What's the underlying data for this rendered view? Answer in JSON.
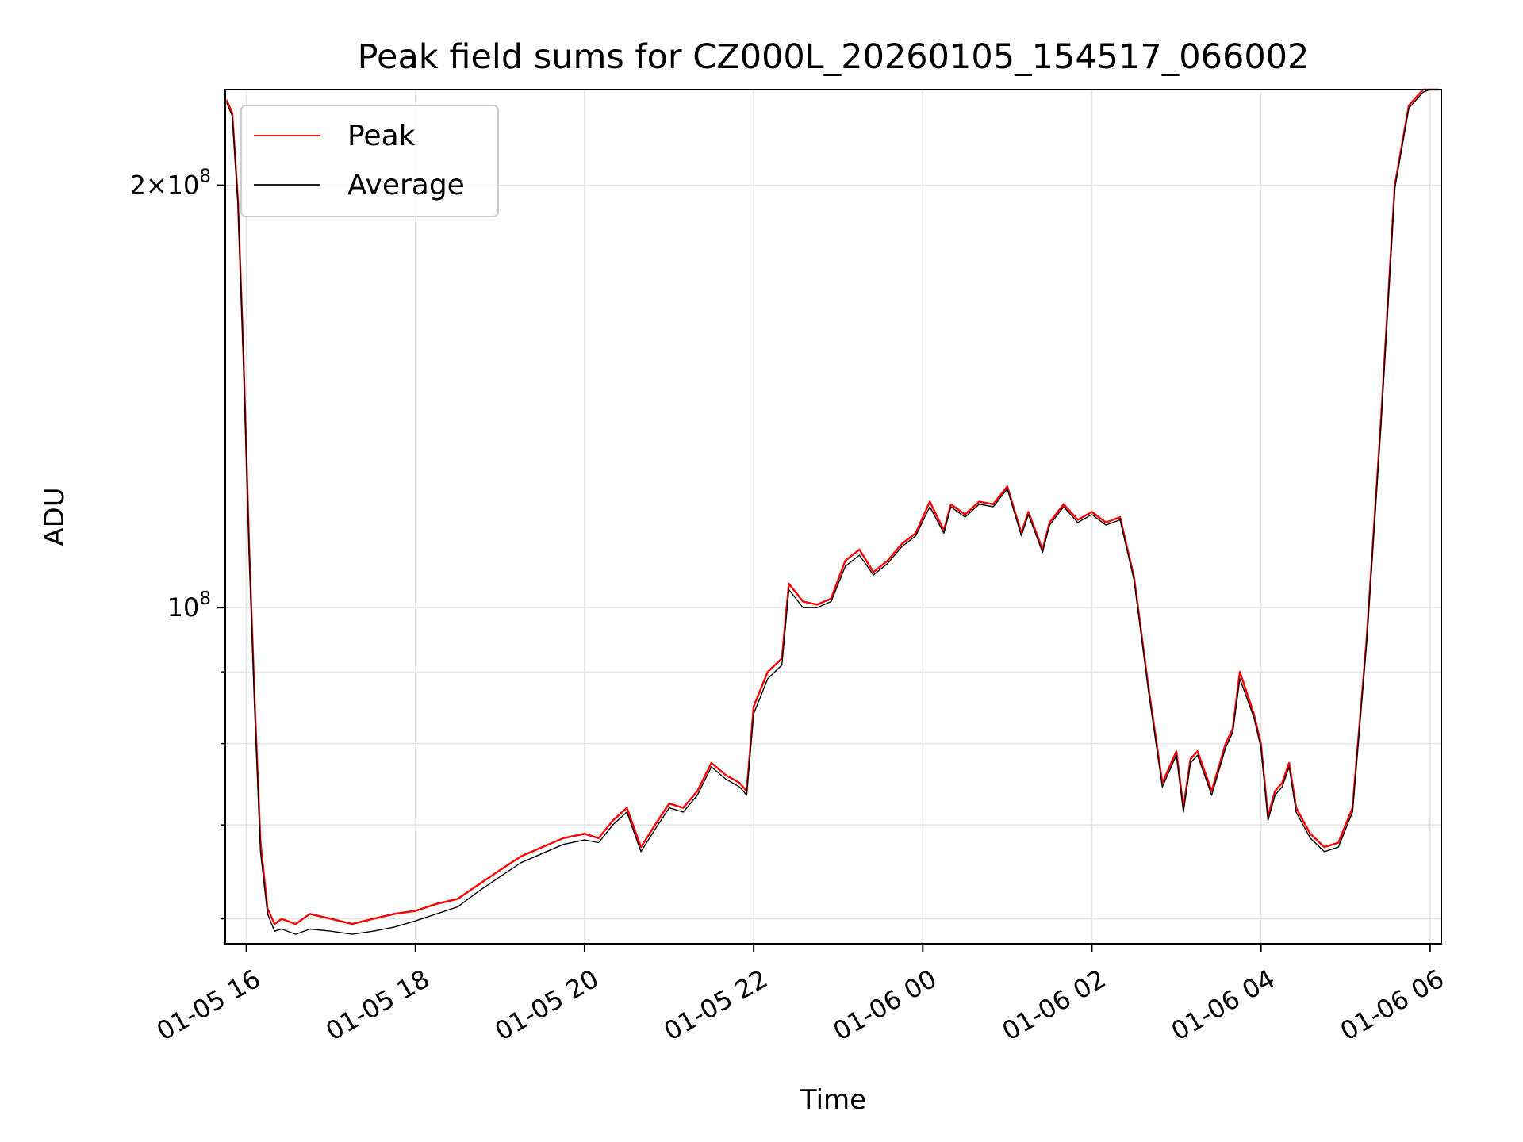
{
  "chart_data": {
    "type": "line",
    "title": "Peak field sums for CZ000L_20260105_154517_066002",
    "xlabel": "Time",
    "ylabel": "ADU",
    "yscale": "log",
    "grid": true,
    "legend_placement": "upper-left",
    "xlim": [
      "2026-01-05 15:45",
      "2026-01-06 06:08"
    ],
    "ylim": [
      57600000,
      234000000
    ],
    "x_ticks": [
      "01-05 16",
      "01-05 18",
      "01-05 20",
      "01-05 22",
      "01-06 00",
      "01-06 02",
      "01-06 04",
      "01-06 06"
    ],
    "x_tick_times": [
      "2026-01-05 16:00",
      "2026-01-05 18:00",
      "2026-01-05 20:00",
      "2026-01-05 22:00",
      "2026-01-06 00:00",
      "2026-01-06 02:00",
      "2026-01-06 04:00",
      "2026-01-06 06:00"
    ],
    "y_ticks_major": [
      {
        "value": 100000000,
        "label": "10^8"
      },
      {
        "value": 200000000,
        "label": "2×10^8"
      }
    ],
    "y_ticks_minor": [
      60000000,
      70000000,
      80000000,
      90000000
    ],
    "series": [
      {
        "name": "Peak",
        "color": "#ff0000",
        "x": [
          "2026-01-05 15:46",
          "2026-01-05 15:50",
          "2026-01-05 15:54",
          "2026-01-05 15:58",
          "2026-01-05 16:02",
          "2026-01-05 16:06",
          "2026-01-05 16:10",
          "2026-01-05 16:15",
          "2026-01-05 16:20",
          "2026-01-05 16:25",
          "2026-01-05 16:35",
          "2026-01-05 16:45",
          "2026-01-05 17:00",
          "2026-01-05 17:15",
          "2026-01-05 17:30",
          "2026-01-05 17:45",
          "2026-01-05 18:00",
          "2026-01-05 18:15",
          "2026-01-05 18:30",
          "2026-01-05 18:45",
          "2026-01-05 19:00",
          "2026-01-05 19:15",
          "2026-01-05 19:30",
          "2026-01-05 19:45",
          "2026-01-05 20:00",
          "2026-01-05 20:10",
          "2026-01-05 20:20",
          "2026-01-05 20:30",
          "2026-01-05 20:40",
          "2026-01-05 20:50",
          "2026-01-05 21:00",
          "2026-01-05 21:10",
          "2026-01-05 21:20",
          "2026-01-05 21:30",
          "2026-01-05 21:40",
          "2026-01-05 21:50",
          "2026-01-05 21:55",
          "2026-01-05 22:00",
          "2026-01-05 22:10",
          "2026-01-05 22:20",
          "2026-01-05 22:25",
          "2026-01-05 22:35",
          "2026-01-05 22:45",
          "2026-01-05 22:55",
          "2026-01-05 23:05",
          "2026-01-05 23:15",
          "2026-01-05 23:25",
          "2026-01-05 23:35",
          "2026-01-05 23:45",
          "2026-01-05 23:55",
          "2026-01-06 00:05",
          "2026-01-06 00:15",
          "2026-01-06 00:20",
          "2026-01-06 00:30",
          "2026-01-06 00:40",
          "2026-01-06 00:50",
          "2026-01-06 01:00",
          "2026-01-06 01:10",
          "2026-01-06 01:15",
          "2026-01-06 01:25",
          "2026-01-06 01:30",
          "2026-01-06 01:40",
          "2026-01-06 01:50",
          "2026-01-06 02:00",
          "2026-01-06 02:10",
          "2026-01-06 02:20",
          "2026-01-06 02:30",
          "2026-01-06 02:40",
          "2026-01-06 02:50",
          "2026-01-06 03:00",
          "2026-01-06 03:05",
          "2026-01-06 03:10",
          "2026-01-06 03:15",
          "2026-01-06 03:25",
          "2026-01-06 03:35",
          "2026-01-06 03:40",
          "2026-01-06 03:45",
          "2026-01-06 03:55",
          "2026-01-06 04:00",
          "2026-01-06 04:05",
          "2026-01-06 04:10",
          "2026-01-06 04:15",
          "2026-01-06 04:20",
          "2026-01-06 04:25",
          "2026-01-06 04:35",
          "2026-01-06 04:45",
          "2026-01-06 04:55",
          "2026-01-06 05:05",
          "2026-01-06 05:15",
          "2026-01-06 05:25",
          "2026-01-06 05:35",
          "2026-01-06 05:45",
          "2026-01-06 05:55",
          "2026-01-06 06:00",
          "2026-01-06 06:06"
        ],
        "values": [
          230000000,
          225000000,
          195000000,
          150000000,
          110000000,
          85000000,
          68000000,
          61000000,
          59500000,
          60000000,
          59500000,
          60500000,
          60000000,
          59500000,
          60000000,
          60500000,
          60800000,
          61500000,
          62000000,
          63500000,
          65000000,
          66500000,
          67500000,
          68500000,
          69000000,
          68500000,
          70500000,
          72000000,
          67500000,
          70000000,
          72500000,
          72000000,
          74000000,
          77500000,
          76000000,
          75000000,
          74000000,
          85000000,
          90000000,
          92000000,
          104000000,
          101000000,
          100500000,
          101500000,
          108000000,
          110000000,
          106000000,
          108000000,
          111000000,
          113000000,
          119000000,
          113500000,
          118500000,
          116500000,
          119000000,
          118500000,
          122000000,
          113000000,
          117000000,
          110000000,
          115000000,
          118500000,
          115500000,
          117000000,
          115000000,
          116000000,
          105000000,
          88000000,
          75000000,
          79000000,
          72000000,
          78000000,
          79000000,
          74000000,
          80000000,
          82000000,
          90000000,
          84000000,
          80000000,
          71000000,
          74000000,
          75000000,
          77500000,
          72000000,
          69000000,
          67500000,
          68000000,
          72000000,
          95000000,
          135000000,
          200000000,
          228000000,
          234000000,
          234000000,
          234000000
        ]
      },
      {
        "name": "Average",
        "color": "#000000",
        "x": [
          "2026-01-05 15:46",
          "2026-01-05 15:50",
          "2026-01-05 15:54",
          "2026-01-05 15:58",
          "2026-01-05 16:02",
          "2026-01-05 16:06",
          "2026-01-05 16:10",
          "2026-01-05 16:15",
          "2026-01-05 16:20",
          "2026-01-05 16:25",
          "2026-01-05 16:35",
          "2026-01-05 16:45",
          "2026-01-05 17:00",
          "2026-01-05 17:15",
          "2026-01-05 17:30",
          "2026-01-05 17:45",
          "2026-01-05 18:00",
          "2026-01-05 18:15",
          "2026-01-05 18:30",
          "2026-01-05 18:45",
          "2026-01-05 19:00",
          "2026-01-05 19:15",
          "2026-01-05 19:30",
          "2026-01-05 19:45",
          "2026-01-05 20:00",
          "2026-01-05 20:10",
          "2026-01-05 20:20",
          "2026-01-05 20:30",
          "2026-01-05 20:40",
          "2026-01-05 20:50",
          "2026-01-05 21:00",
          "2026-01-05 21:10",
          "2026-01-05 21:20",
          "2026-01-05 21:30",
          "2026-01-05 21:40",
          "2026-01-05 21:50",
          "2026-01-05 21:55",
          "2026-01-05 22:00",
          "2026-01-05 22:10",
          "2026-01-05 22:20",
          "2026-01-05 22:25",
          "2026-01-05 22:35",
          "2026-01-05 22:45",
          "2026-01-05 22:55",
          "2026-01-05 23:05",
          "2026-01-05 23:15",
          "2026-01-05 23:25",
          "2026-01-05 23:35",
          "2026-01-05 23:45",
          "2026-01-05 23:55",
          "2026-01-06 00:05",
          "2026-01-06 00:15",
          "2026-01-06 00:20",
          "2026-01-06 00:30",
          "2026-01-06 00:40",
          "2026-01-06 00:50",
          "2026-01-06 01:00",
          "2026-01-06 01:10",
          "2026-01-06 01:15",
          "2026-01-06 01:25",
          "2026-01-06 01:30",
          "2026-01-06 01:40",
          "2026-01-06 01:50",
          "2026-01-06 02:00",
          "2026-01-06 02:10",
          "2026-01-06 02:20",
          "2026-01-06 02:30",
          "2026-01-06 02:40",
          "2026-01-06 02:50",
          "2026-01-06 03:00",
          "2026-01-06 03:05",
          "2026-01-06 03:10",
          "2026-01-06 03:15",
          "2026-01-06 03:25",
          "2026-01-06 03:35",
          "2026-01-06 03:40",
          "2026-01-06 03:45",
          "2026-01-06 03:55",
          "2026-01-06 04:00",
          "2026-01-06 04:05",
          "2026-01-06 04:10",
          "2026-01-06 04:15",
          "2026-01-06 04:20",
          "2026-01-06 04:25",
          "2026-01-06 04:35",
          "2026-01-06 04:45",
          "2026-01-06 04:55",
          "2026-01-06 05:05",
          "2026-01-06 05:15",
          "2026-01-06 05:25",
          "2026-01-06 05:35",
          "2026-01-06 05:45",
          "2026-01-06 05:55",
          "2026-01-06 06:00",
          "2026-01-06 06:06"
        ],
        "values": [
          229000000,
          224000000,
          194000000,
          149000000,
          109000000,
          84000000,
          67000000,
          60500000,
          58800000,
          59000000,
          58500000,
          59000000,
          58800000,
          58500000,
          58800000,
          59200000,
          59800000,
          60500000,
          61200000,
          62800000,
          64300000,
          65800000,
          66800000,
          67800000,
          68300000,
          68000000,
          70000000,
          71500000,
          67000000,
          69500000,
          72000000,
          71500000,
          73500000,
          77000000,
          75500000,
          74500000,
          73500000,
          84000000,
          89000000,
          91000000,
          103000000,
          100000000,
          100000000,
          101000000,
          107000000,
          109000000,
          105500000,
          107500000,
          110500000,
          112500000,
          118000000,
          113000000,
          118000000,
          116000000,
          118500000,
          118000000,
          121500000,
          112500000,
          116500000,
          109500000,
          114500000,
          118000000,
          115000000,
          116500000,
          114500000,
          115500000,
          104500000,
          87500000,
          74500000,
          78500000,
          71500000,
          77500000,
          78500000,
          73500000,
          79500000,
          81500000,
          89000000,
          83500000,
          79500000,
          70500000,
          73500000,
          74500000,
          77000000,
          71500000,
          68500000,
          67000000,
          67500000,
          71500000,
          94500000,
          134000000,
          199000000,
          227000000,
          233000000,
          234000000,
          234000000
        ]
      }
    ]
  }
}
